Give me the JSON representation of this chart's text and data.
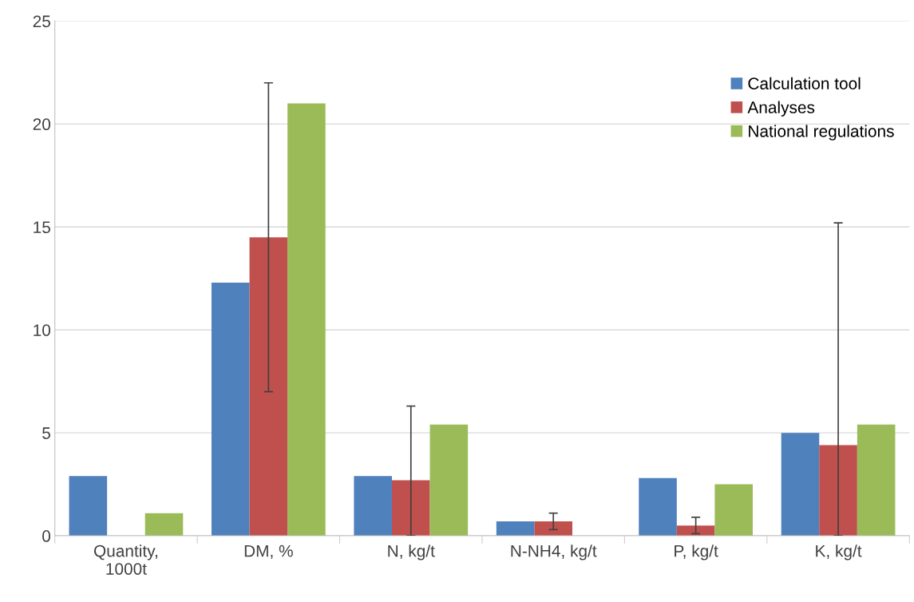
{
  "chart_data": {
    "type": "bar",
    "categories": [
      "Quantity,\n1000t",
      "DM, %",
      "N, kg/t",
      "N-NH4, kg/t",
      "P, kg/t",
      "K, kg/t"
    ],
    "series": [
      {
        "name": "Calculation tool",
        "color": "#4f81bd",
        "values": [
          2.9,
          12.3,
          2.9,
          0.7,
          2.8,
          5.0
        ]
      },
      {
        "name": "Analyses",
        "color": "#c0504d",
        "values": [
          null,
          14.5,
          2.7,
          0.7,
          0.5,
          4.4
        ],
        "errors": [
          null,
          [
            7,
            22
          ],
          [
            0,
            6.3
          ],
          [
            0.3,
            1.1
          ],
          [
            0.1,
            0.9
          ],
          [
            0,
            15.2
          ]
        ]
      },
      {
        "name": "National regulations",
        "color": "#9bbb59",
        "values": [
          1.1,
          21.0,
          5.4,
          null,
          2.5,
          5.4
        ]
      }
    ],
    "ylim": [
      0,
      25
    ],
    "yticks": [
      0,
      5,
      10,
      15,
      20,
      25
    ],
    "grid": "y",
    "legend": "top right"
  }
}
